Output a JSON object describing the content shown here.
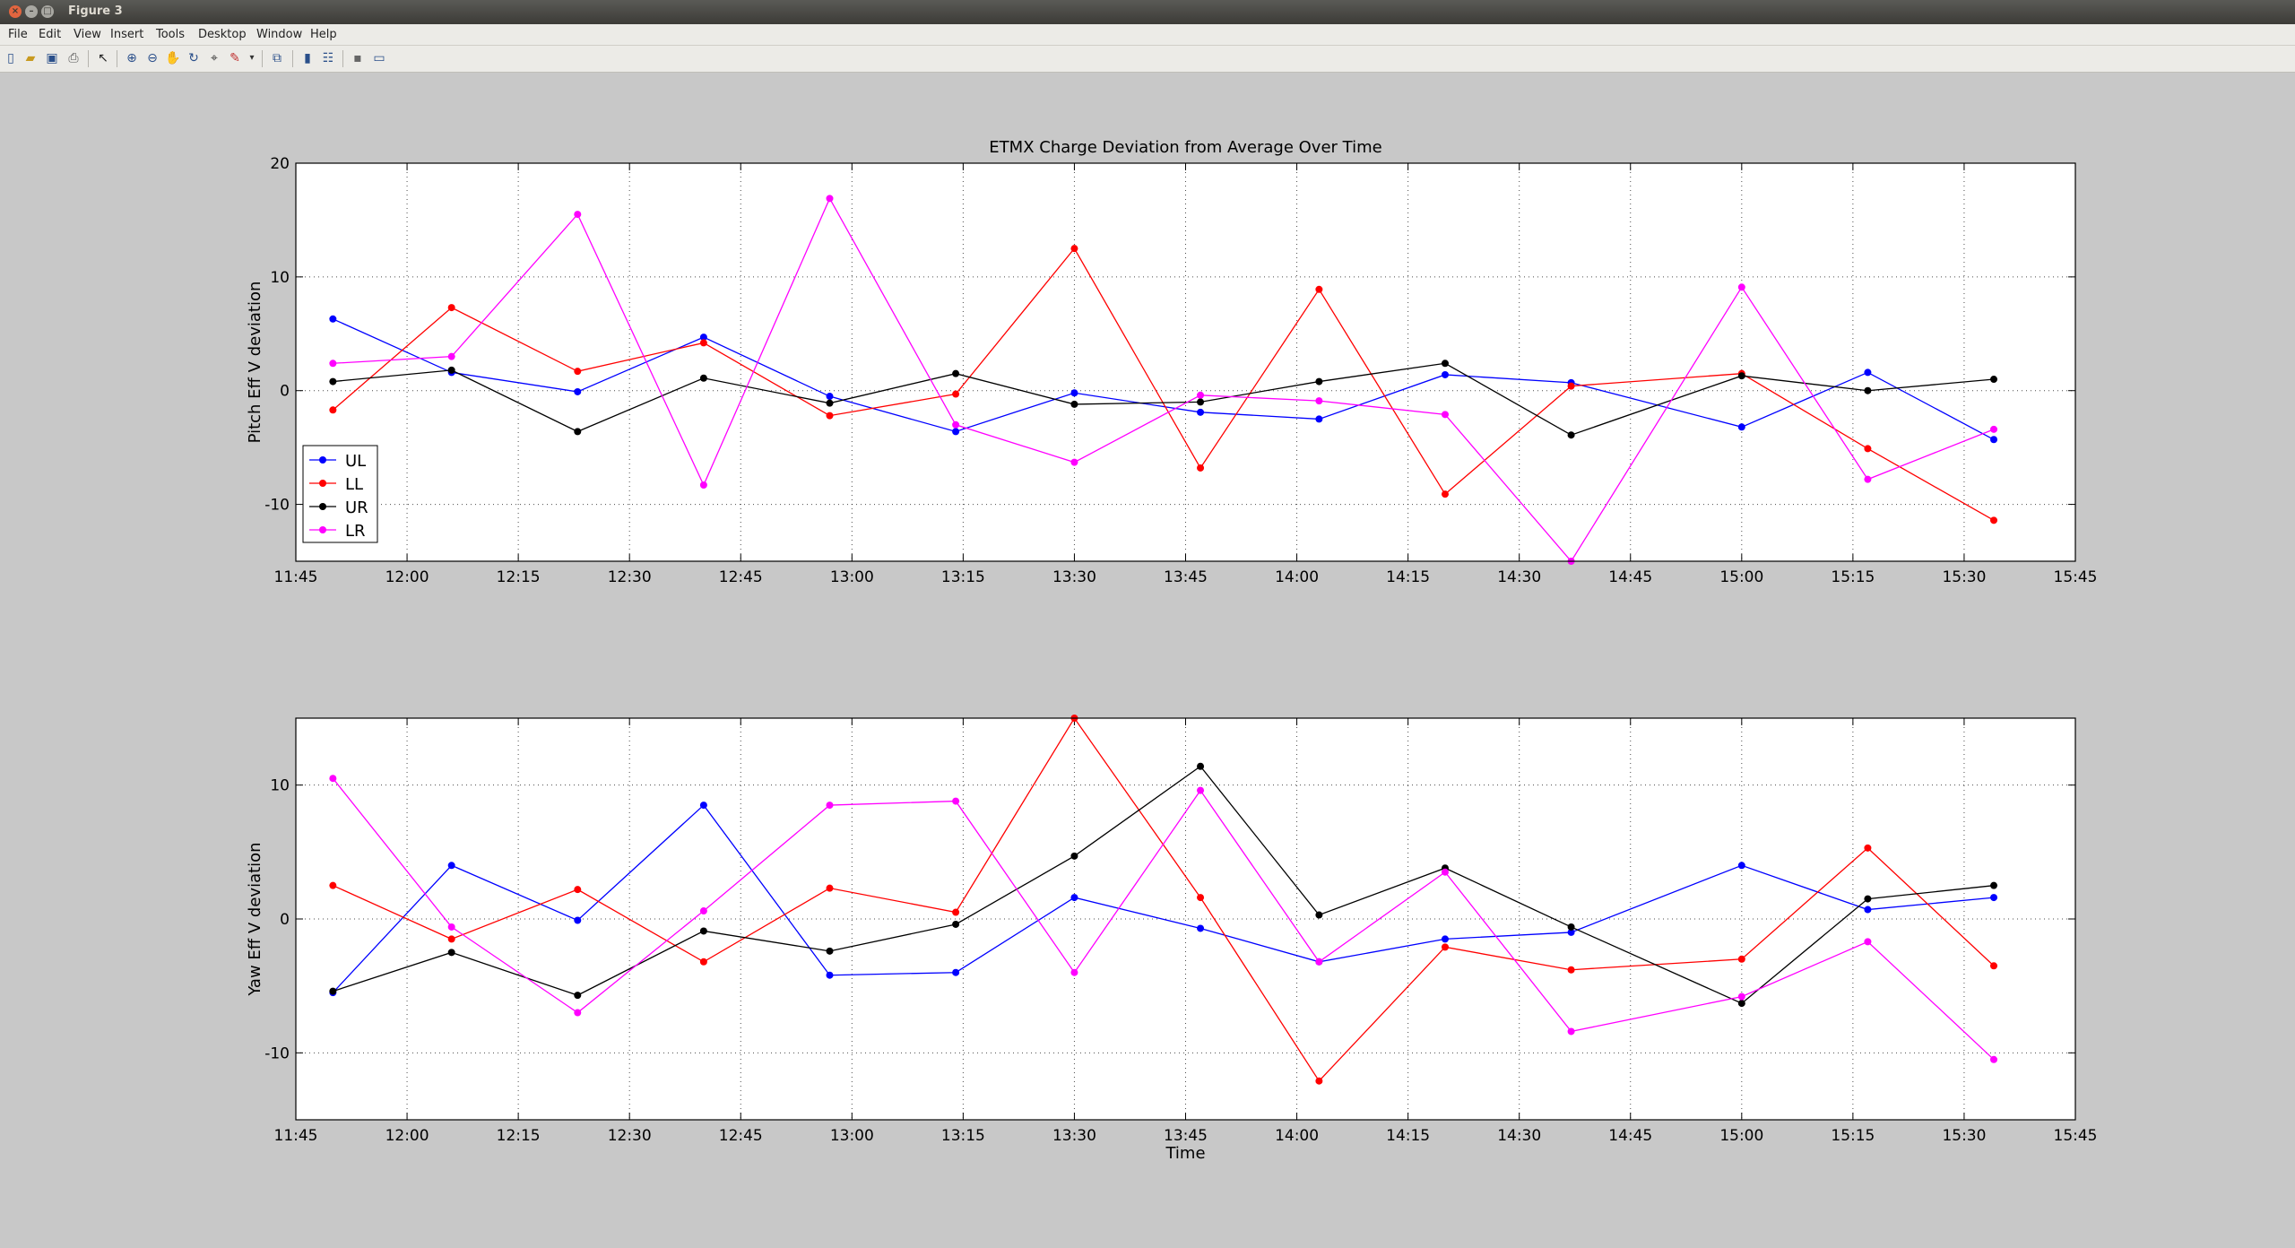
{
  "window": {
    "title": "Figure 3"
  },
  "menu": [
    "File",
    "Edit",
    "View",
    "Insert",
    "Tools",
    "Desktop",
    "Window",
    "Help"
  ],
  "toolbar": [
    "new-figure",
    "open-file",
    "save-figure",
    "print-figure",
    "edit-plot",
    "zoom-in",
    "zoom-out",
    "pan",
    "rotate-3d",
    "data-cursor",
    "brush",
    "link-plot",
    "insert-colorbar",
    "insert-legend",
    "hide-plot-tools",
    "show-plot-tools"
  ],
  "colors": {
    "UL": "#0000ff",
    "LL": "#ff0000",
    "UR": "#000000",
    "LR": "#ff00ff"
  },
  "chart_data": [
    {
      "type": "line",
      "title": "ETMX Charge Deviation from Average Over Time",
      "xlabel": "",
      "ylabel": "Pitch Eff V deviation",
      "x": [
        "11:50",
        "12:06",
        "12:23",
        "12:40",
        "12:57",
        "13:14",
        "13:30",
        "13:47",
        "14:03",
        "14:20",
        "14:37",
        "15:00",
        "15:17",
        "15:34"
      ],
      "xlim": [
        "11:45",
        "15:45"
      ],
      "xticks": [
        "11:45",
        "12:00",
        "12:15",
        "12:30",
        "12:45",
        "13:00",
        "13:15",
        "13:30",
        "13:45",
        "14:00",
        "14:15",
        "14:30",
        "14:45",
        "15:00",
        "15:15",
        "15:30",
        "15:45"
      ],
      "ylim": [
        -15,
        20
      ],
      "yticks": [
        "-10",
        "0",
        "10",
        "20"
      ],
      "grid": true,
      "legend": "bottom-left",
      "series": [
        {
          "name": "UL",
          "values": [
            6.3,
            1.6,
            -0.1,
            4.7,
            -0.5,
            -3.6,
            -0.2,
            -1.9,
            -2.5,
            1.4,
            0.7,
            -3.2,
            1.6,
            -4.3
          ]
        },
        {
          "name": "LL",
          "values": [
            -1.7,
            7.3,
            1.7,
            4.2,
            -2.2,
            -0.3,
            12.5,
            -6.8,
            8.9,
            -9.1,
            0.4,
            1.5,
            -5.1,
            -11.4
          ]
        },
        {
          "name": "UR",
          "values": [
            0.8,
            1.8,
            -3.6,
            1.1,
            -1.1,
            1.5,
            -1.2,
            -1.0,
            0.8,
            2.4,
            -3.9,
            1.3,
            0.0,
            1.0
          ]
        },
        {
          "name": "LR",
          "values": [
            2.4,
            3.0,
            15.5,
            -8.3,
            16.9,
            -3.0,
            -6.3,
            -0.4,
            -0.9,
            -2.1,
            -15.0,
            9.1,
            -7.8,
            -3.4
          ]
        }
      ]
    },
    {
      "type": "line",
      "title": "",
      "xlabel": "Time",
      "ylabel": "Yaw Eff V deviation",
      "x": [
        "11:50",
        "12:06",
        "12:23",
        "12:40",
        "12:57",
        "13:14",
        "13:30",
        "13:47",
        "14:03",
        "14:20",
        "14:37",
        "15:00",
        "15:17",
        "15:34"
      ],
      "xlim": [
        "11:45",
        "15:45"
      ],
      "xticks": [
        "11:45",
        "12:00",
        "12:15",
        "12:30",
        "12:45",
        "13:00",
        "13:15",
        "13:30",
        "13:45",
        "14:00",
        "14:15",
        "14:30",
        "14:45",
        "15:00",
        "15:15",
        "15:30",
        "15:45"
      ],
      "ylim": [
        -15,
        15
      ],
      "yticks": [
        "-10",
        "0",
        "10"
      ],
      "grid": true,
      "legend": "none",
      "series": [
        {
          "name": "UL",
          "values": [
            -5.5,
            4.0,
            -0.1,
            8.5,
            -4.2,
            -4.0,
            1.6,
            -0.7,
            -3.2,
            -1.5,
            -1.0,
            4.0,
            0.7,
            1.6
          ]
        },
        {
          "name": "LL",
          "values": [
            2.5,
            -1.5,
            2.2,
            -3.2,
            2.3,
            0.5,
            15.0,
            1.6,
            -12.1,
            -2.1,
            -3.8,
            -3.0,
            5.3,
            -3.5
          ]
        },
        {
          "name": "UR",
          "values": [
            -5.4,
            -2.5,
            -5.7,
            -0.9,
            -2.4,
            -0.4,
            4.7,
            11.4,
            0.3,
            3.8,
            -0.6,
            -6.3,
            1.5,
            2.5
          ]
        },
        {
          "name": "LR",
          "values": [
            10.5,
            -0.6,
            -7.0,
            0.6,
            8.5,
            8.8,
            -4.0,
            9.6,
            -3.2,
            3.5,
            -8.4,
            -5.8,
            -1.7,
            -10.5
          ]
        }
      ]
    }
  ]
}
